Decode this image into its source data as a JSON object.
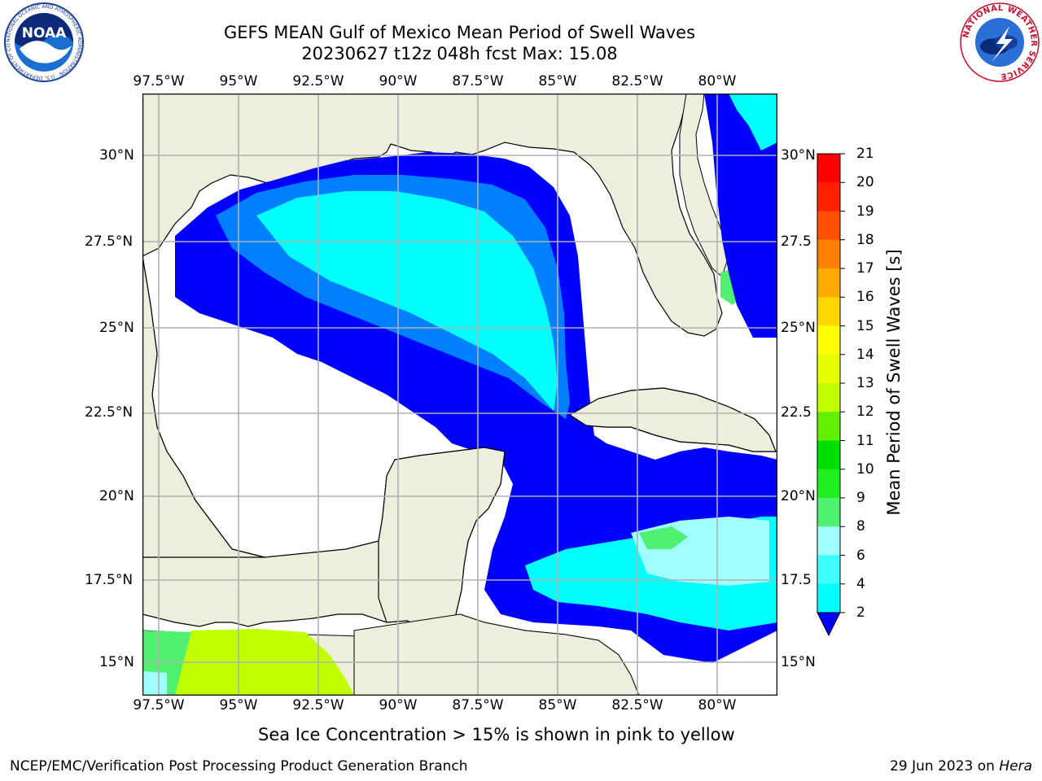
{
  "title": {
    "line1": "GEFS MEAN Gulf of Mexico Mean Period of Swell Waves",
    "line2": "20230627 t12z 048h fcst   Max: 15.08"
  },
  "map": {
    "region": "Gulf of Mexico",
    "lon_labels": [
      "97.5°W",
      "95°W",
      "92.5°W",
      "90°W",
      "87.5°W",
      "85°W",
      "82.5°W",
      "80°W"
    ],
    "lat_labels": [
      "30°N",
      "27.5°N",
      "25°N",
      "22.5°N",
      "20°N",
      "17.5°N",
      "15°N"
    ],
    "right_lat_labels": [
      "30°N",
      "27.5",
      "25°N",
      "22.5",
      "20°N",
      "17.5",
      "15°N"
    ],
    "land_color": "#eeeedc",
    "grid_color": "#b0b0b0"
  },
  "colorbar": {
    "label": "Mean Period of Swell Waves [s]",
    "ticks": [
      "2",
      "4",
      "6",
      "8",
      "9",
      "10",
      "11",
      "12",
      "13",
      "14",
      "15",
      "16",
      "17",
      "18",
      "19",
      "20",
      "21"
    ],
    "colors": [
      "#0000ff",
      "#0080ff",
      "#00ffff",
      "#40ffff",
      "#a0ffff",
      "#50f070",
      "#20f020",
      "#00e000",
      "#60f000",
      "#c0ff00",
      "#e8ff00",
      "#ffff00",
      "#ffd700",
      "#ffaa00",
      "#ff8000",
      "#ff5000",
      "#ff2000",
      "#ff0000"
    ]
  },
  "note": "Sea Ice Concentration > 15% is shown in pink to yellow",
  "footer": {
    "left": "NCEP/EMC/Verification Post Processing Product Generation Branch",
    "right_date": "29 Jun 2023 on",
    "right_host": "Hera"
  },
  "logos": {
    "left": "NOAA",
    "left_ring": "NATIONAL OCEANIC AND ATMOSPHERIC ADMINISTRATION · U.S. DEPARTMENT OF COMMERCE",
    "right": "NATIONAL WEATHER SERVICE"
  }
}
